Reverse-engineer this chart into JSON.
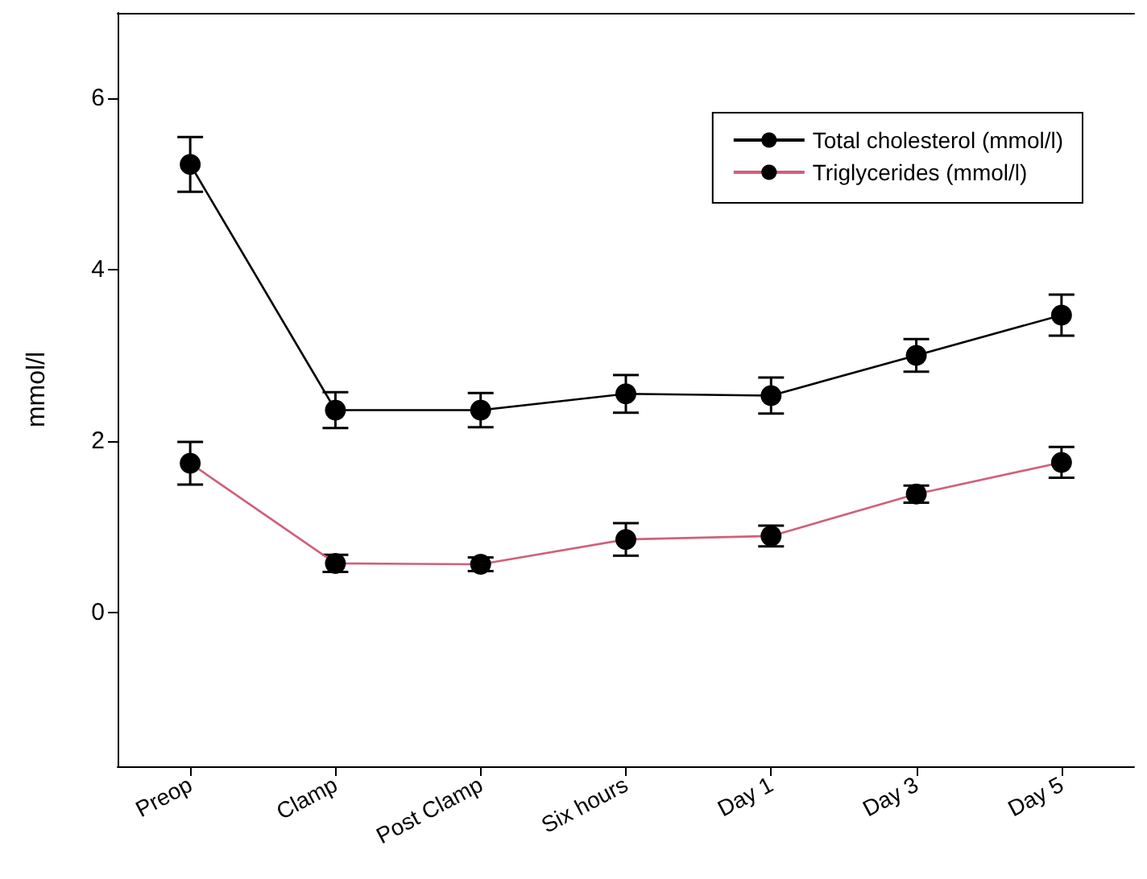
{
  "chart_data": {
    "type": "line",
    "ylabel": "mmol/l",
    "categories": [
      "Preop",
      "Clamp",
      "Post Clamp",
      "Six hours",
      "Day 1",
      "Day 3",
      "Day 5"
    ],
    "series": [
      {
        "name": "Total cholesterol (mmol/l)",
        "color": "#000000",
        "values": [
          5.23,
          2.36,
          2.36,
          2.55,
          2.53,
          3.0,
          3.47
        ],
        "errors": [
          0.32,
          0.21,
          0.2,
          0.22,
          0.21,
          0.19,
          0.24
        ]
      },
      {
        "name": "Triglycerides (mmol/l)",
        "color": "#d0607a",
        "values": [
          1.74,
          0.57,
          0.56,
          0.85,
          0.89,
          1.38,
          1.75
        ],
        "errors": [
          0.25,
          0.1,
          0.08,
          0.19,
          0.12,
          0.1,
          0.18
        ]
      }
    ],
    "ylim": [
      -1.8,
      7
    ],
    "yticks": [
      0,
      2,
      4,
      6
    ],
    "grid": false,
    "legend": "top right",
    "marker": "circle",
    "line_style": "solid"
  }
}
